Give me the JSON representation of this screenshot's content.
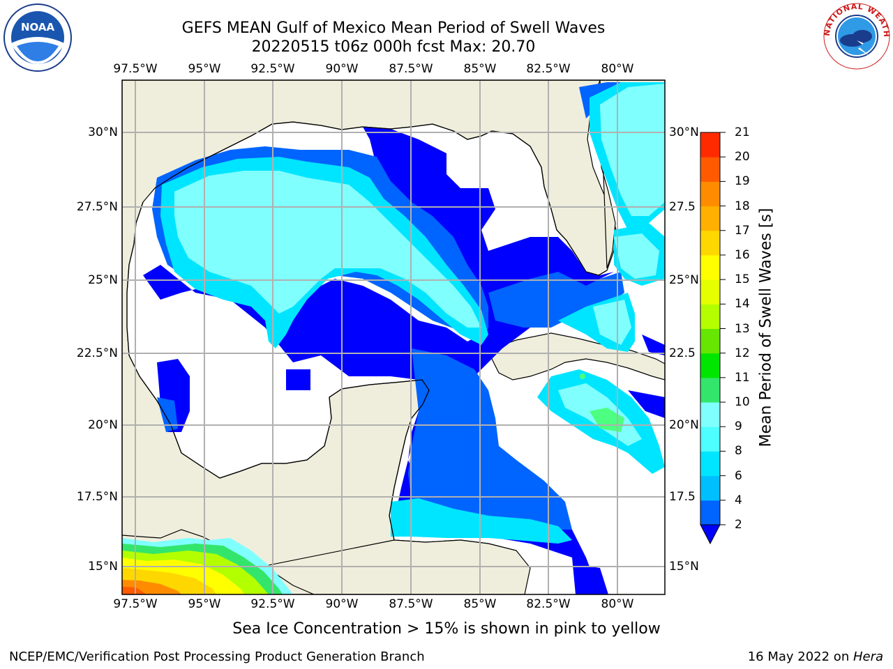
{
  "title_line1": "GEFS MEAN Gulf of Mexico Mean Period of Swell Waves",
  "title_line2": "20220515 t06z 000h fcst   Max: 20.70",
  "lon_labels": [
    "97.5°W",
    "95°W",
    "92.5°W",
    "90°W",
    "87.5°W",
    "85°W",
    "82.5°W",
    "80°W"
  ],
  "lat_labels_left": [
    "30°N",
    "27.5°N",
    "25°N",
    "22.5°N",
    "20°N",
    "17.5°N",
    "15°N"
  ],
  "lat_labels_right": [
    "30°N",
    "27.5",
    "25°N",
    "22.5",
    "20°N",
    "17.5",
    "15°N"
  ],
  "colorbar": {
    "label": "Mean Period of Swell Waves [s]",
    "ticks": [
      "2",
      "4",
      "6",
      "8",
      "9",
      "10",
      "11",
      "12",
      "13",
      "14",
      "15",
      "16",
      "17",
      "18",
      "19",
      "20",
      "21"
    ],
    "colors": [
      "#0064ff",
      "#00bfff",
      "#00e5ff",
      "#4dffff",
      "#80ffff",
      "#33e66b",
      "#00e600",
      "#66e600",
      "#b3ff00",
      "#e6ff00",
      "#ffff00",
      "#ffd700",
      "#ffb000",
      "#ff8c00",
      "#ff5a00",
      "#ff2a00"
    ],
    "extend_color": "#0000ff"
  },
  "note": "Sea Ice Concentration > 15% is shown in pink to yellow",
  "footer_left": "NCEP/EMC/Verification Post Processing Product Generation Branch",
  "footer_right_prefix": "16 May 2022 on ",
  "footer_right_host": "Hera",
  "logos": {
    "noaa": "NOAA",
    "nws": "NATIONAL WEATHER SERVICE"
  },
  "colors": {
    "land": "#efeedc",
    "sea_blue": "#0000ff",
    "sea_mid": "#0064ff",
    "sea_cyan": "#00e5ff",
    "sea_light": "#80ffff",
    "grid": "#b0b0b0"
  }
}
